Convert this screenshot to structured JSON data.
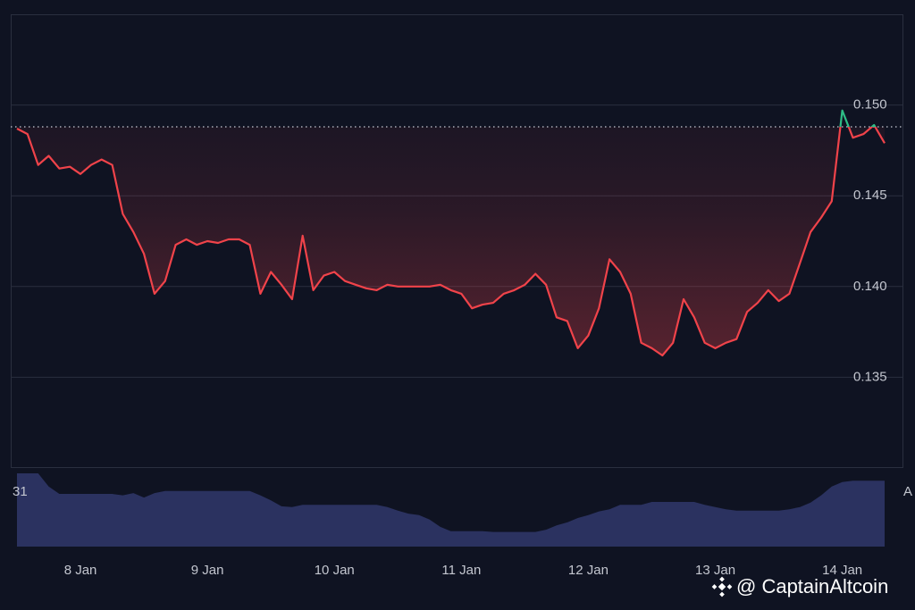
{
  "chart_data": {
    "type": "line",
    "values": [
      0.1487,
      0.1484,
      0.1467,
      0.1472,
      0.1465,
      0.1466,
      0.1462,
      0.1467,
      0.147,
      0.1467,
      0.144,
      0.143,
      0.1418,
      0.1396,
      0.1403,
      0.1423,
      0.1426,
      0.1423,
      0.1425,
      0.1424,
      0.1426,
      0.1426,
      0.1423,
      0.1396,
      0.1408,
      0.1401,
      0.1393,
      0.1428,
      0.1398,
      0.1406,
      0.1408,
      0.1403,
      0.1401,
      0.1399,
      0.1398,
      0.1401,
      0.14,
      0.14,
      0.14,
      0.14,
      0.1401,
      0.1398,
      0.1396,
      0.1388,
      0.139,
      0.1391,
      0.1396,
      0.1398,
      0.1401,
      0.1407,
      0.1401,
      0.1383,
      0.1381,
      0.1366,
      0.1373,
      0.1388,
      0.1415,
      0.1408,
      0.1396,
      0.1369,
      0.1366,
      0.1362,
      0.1369,
      0.1393,
      0.1383,
      0.1369,
      0.1366,
      0.1369,
      0.1371,
      0.1386,
      0.1391,
      0.1398,
      0.1392,
      0.1396,
      0.1413,
      0.143,
      0.1438,
      0.1447,
      0.1497,
      0.1482,
      0.1484,
      0.1489,
      0.1479
    ],
    "color": "#f0434a",
    "up_color": "#2ebd85",
    "reference_line": 0.1488,
    "ylim": [
      0.13,
      0.155
    ],
    "yticks": [
      {
        "value": 0.15,
        "label": "0.150"
      },
      0.145,
      {
        "value": 0.14,
        "label": "0.140"
      },
      0.135
    ],
    "xlim": [
      0,
      82
    ],
    "xticks": [
      {
        "value": 6,
        "label": "8 Jan"
      },
      {
        "value": 18,
        "label": "9 Jan"
      },
      {
        "value": 30,
        "label": "10 Jan"
      },
      {
        "value": 42,
        "label": "11 Jan"
      },
      {
        "value": 54,
        "label": "12 Jan"
      },
      {
        "value": 66,
        "label": "13 Jan"
      },
      {
        "value": 78,
        "label": "14 Jan"
      }
    ],
    "grid": true,
    "volume": {
      "values": [
        100,
        100,
        100,
        82,
        72,
        72,
        72,
        72,
        72,
        72,
        70,
        73,
        67,
        73,
        76,
        76,
        76,
        76,
        76,
        76,
        76,
        76,
        76,
        70,
        63,
        55,
        54,
        57,
        57,
        57,
        57,
        57,
        57,
        57,
        57,
        54,
        49,
        45,
        43,
        37,
        27,
        21,
        21,
        21,
        21,
        20,
        20,
        20,
        20,
        20,
        23,
        29,
        33,
        39,
        43,
        48,
        51,
        57,
        57,
        57,
        61,
        61,
        61,
        61,
        61,
        57,
        54,
        51,
        49,
        49,
        49,
        49,
        49,
        51,
        54,
        60,
        70,
        82,
        88,
        90,
        90,
        90,
        90
      ],
      "ylim": [
        0,
        100
      ],
      "color": "#2b3260",
      "label": "31",
      "right_label": "A"
    },
    "watermark": "@ CaptainAltcoin"
  }
}
